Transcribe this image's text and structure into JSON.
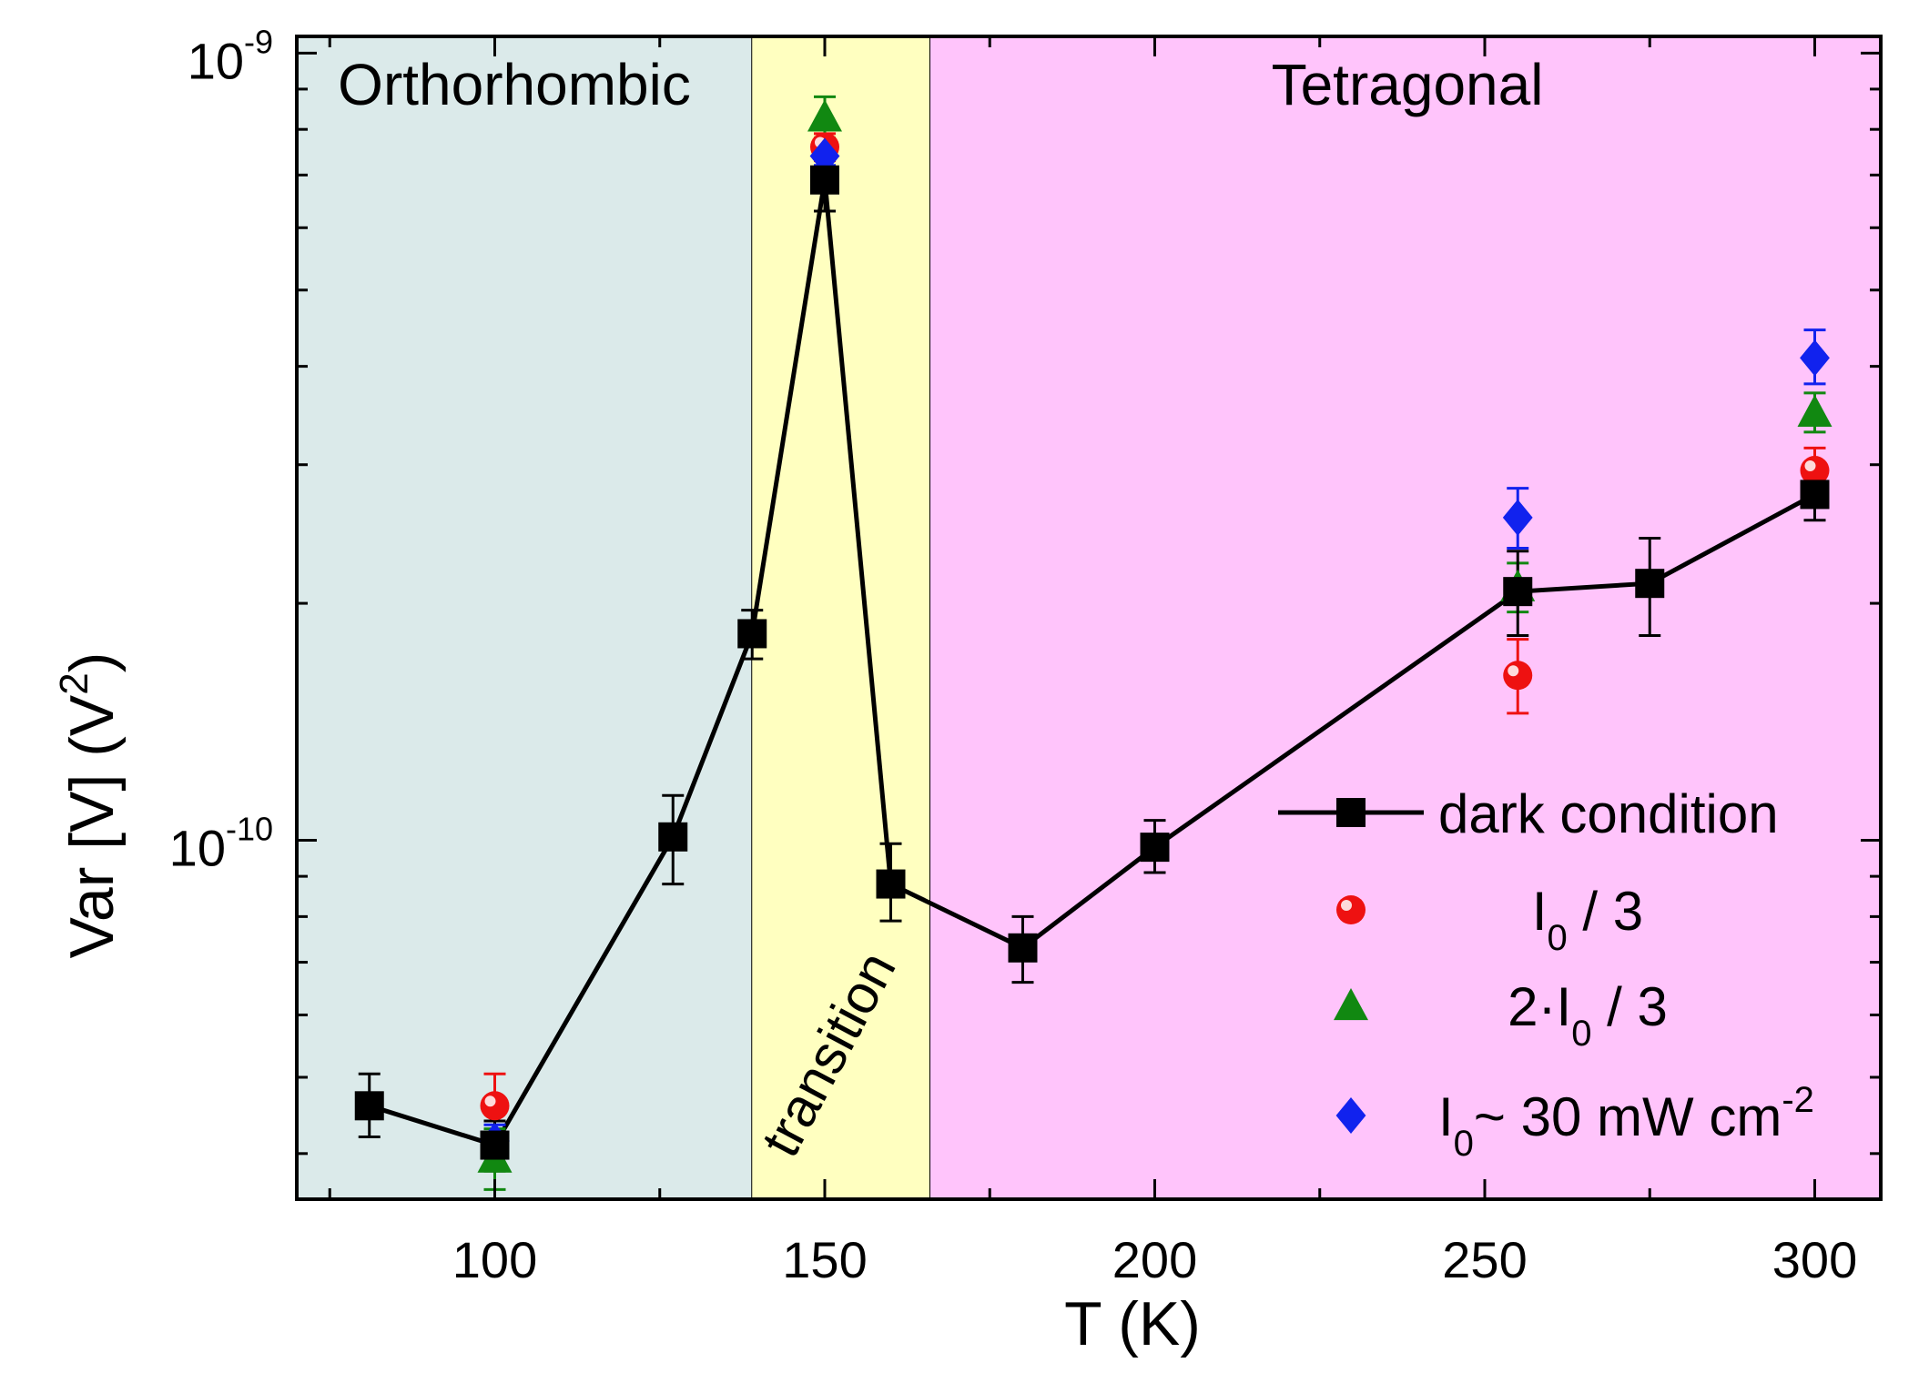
{
  "chart_data": {
    "type": "scatter",
    "title": "",
    "xlabel": "T (K)",
    "ylabel_main": "Var [V]  (V",
    "ylabel_sup": "2",
    "ylabel_close": ")",
    "xscale": "linear",
    "yscale": "log",
    "xlim": [
      70,
      310
    ],
    "ylim": [
      3.5e-11,
      1.05e-09
    ],
    "x_ticks": [
      100,
      150,
      200,
      250,
      300
    ],
    "x_minor_ticks": [
      75,
      125,
      175,
      225,
      275
    ],
    "y_major_ticks": [
      {
        "value": 1e-10,
        "base": "10",
        "exp": "-10"
      },
      {
        "value": 1e-09,
        "base": "10",
        "exp": "-9"
      }
    ],
    "y_minor_ticks": [
      4e-11,
      5e-11,
      6e-11,
      7e-11,
      8e-11,
      9e-11,
      2e-10,
      3e-10,
      4e-10,
      5e-10,
      6e-10,
      7e-10,
      8e-10,
      9e-10
    ],
    "regions": [
      {
        "label": "Orthorhombic",
        "x_start": 70,
        "x_end": 139,
        "color": "#dbeaea",
        "label_orientation": "horizontal"
      },
      {
        "label": "transition",
        "x_start": 139,
        "x_end": 166,
        "color": "#ffffc0",
        "label_orientation": "rotated"
      },
      {
        "label": "Tetragonal",
        "x_start": 166,
        "x_end": 310,
        "color": "#ffc4fb",
        "label_orientation": "horizontal"
      }
    ],
    "series": [
      {
        "name": "dark condition",
        "marker": "square",
        "color": "#000000",
        "line": true,
        "points": [
          {
            "x": 81,
            "y": 4.6e-11,
            "err": [
              4.2e-11,
              5.05e-11
            ]
          },
          {
            "x": 100,
            "y": 4.1e-11,
            "err": [
              3.8e-11,
              4.4e-11
            ]
          },
          {
            "x": 127,
            "y": 1.01e-10,
            "err": [
              8.8e-11,
              1.14e-10
            ]
          },
          {
            "x": 139,
            "y": 1.83e-10,
            "err": [
              1.7e-10,
              1.96e-10
            ]
          },
          {
            "x": 150,
            "y": 6.9e-10,
            "err": [
              6.3e-10,
              7.4e-10
            ]
          },
          {
            "x": 160,
            "y": 8.8e-11,
            "err": [
              7.9e-11,
              9.9e-11
            ]
          },
          {
            "x": 180,
            "y": 7.3e-11,
            "err": [
              6.6e-11,
              8e-11
            ]
          },
          {
            "x": 200,
            "y": 9.8e-11,
            "err": [
              9.1e-11,
              1.06e-10
            ]
          },
          {
            "x": 255,
            "y": 2.07e-10,
            "err": [
              1.82e-10,
              2.33e-10
            ]
          },
          {
            "x": 275,
            "y": 2.12e-10,
            "err": [
              1.82e-10,
              2.42e-10
            ]
          },
          {
            "x": 300,
            "y": 2.75e-10,
            "err": [
              2.55e-10,
              2.95e-10
            ]
          }
        ]
      },
      {
        "name": "I0 / 3",
        "marker": "circle",
        "color": "#ee1111",
        "line": false,
        "points": [
          {
            "x": 100,
            "y": 4.6e-11,
            "err": [
              4.1e-11,
              5.05e-11
            ]
          },
          {
            "x": 150,
            "y": 7.6e-10,
            "err": [
              7.3e-10,
              7.9e-10
            ]
          },
          {
            "x": 255,
            "y": 1.62e-10,
            "err": [
              1.45e-10,
              1.8e-10
            ]
          },
          {
            "x": 300,
            "y": 2.95e-10,
            "err": [
              2.8e-10,
              3.15e-10
            ]
          }
        ]
      },
      {
        "name": "2·I0 / 3",
        "marker": "triangle",
        "color": "#118811",
        "line": false,
        "points": [
          {
            "x": 100,
            "y": 3.95e-11,
            "err": [
              3.6e-11,
              4.3e-11
            ]
          },
          {
            "x": 150,
            "y": 8.3e-10,
            "err": [
              7.8e-10,
              8.8e-10
            ]
          },
          {
            "x": 255,
            "y": 2.1e-10,
            "err": [
              1.95e-10,
              2.25e-10
            ]
          },
          {
            "x": 300,
            "y": 3.5e-10,
            "err": [
              3.3e-10,
              3.7e-10
            ]
          }
        ]
      },
      {
        "name": "I0~ 30 mW cm-2",
        "marker": "diamond",
        "color": "#1122ee",
        "line": false,
        "points": [
          {
            "x": 100,
            "y": 4.15e-11,
            "err": [
              3.95e-11,
              4.35e-11
            ]
          },
          {
            "x": 150,
            "y": 7.4e-10,
            "err": [
              7.2e-10,
              7.6e-10
            ]
          },
          {
            "x": 255,
            "y": 2.57e-10,
            "err": [
              2.35e-10,
              2.8e-10
            ]
          },
          {
            "x": 300,
            "y": 4.1e-10,
            "err": [
              3.8e-10,
              4.45e-10
            ]
          }
        ]
      }
    ],
    "legend": {
      "placement": "bottom-right",
      "entries": [
        {
          "marker": "square",
          "color": "#000000",
          "line": true,
          "text_parts": [
            [
              "dark condition",
              ""
            ]
          ]
        },
        {
          "marker": "circle",
          "color": "#ee1111",
          "line": false,
          "text_parts": [
            [
              "I",
              ""
            ],
            [
              "0",
              "sub"
            ],
            [
              " / 3",
              ""
            ]
          ]
        },
        {
          "marker": "triangle",
          "color": "#118811",
          "line": false,
          "text_parts": [
            [
              "2·I",
              ""
            ],
            [
              "0",
              "sub"
            ],
            [
              " / 3",
              ""
            ]
          ]
        },
        {
          "marker": "diamond",
          "color": "#1122ee",
          "line": false,
          "text_parts": [
            [
              "I",
              ""
            ],
            [
              "0",
              "sub"
            ],
            [
              "~ 30 mW cm",
              ""
            ],
            [
              "-2",
              "sup"
            ]
          ]
        }
      ]
    }
  }
}
